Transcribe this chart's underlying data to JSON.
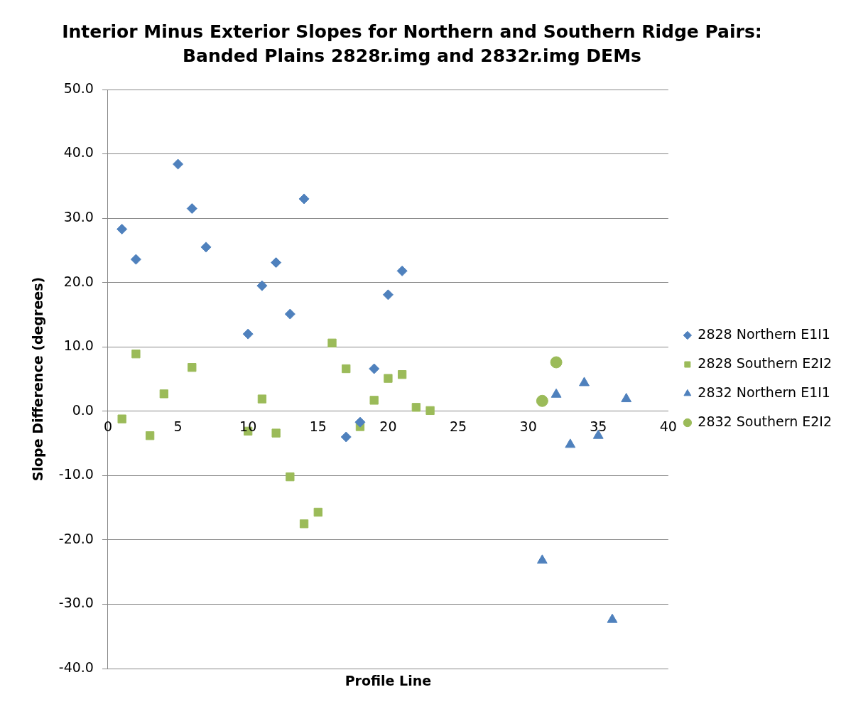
{
  "chart_data": {
    "type": "scatter",
    "title": "Interior Minus Exterior Slopes for Northern and Southern Ridge Pairs: Banded Plains 2828r.img and 2832r.img DEMs",
    "xlabel": "Profile Line",
    "ylabel": "Slope Difference (degrees)",
    "xlim": [
      0,
      40
    ],
    "xticks": [
      0,
      5,
      10,
      15,
      20,
      25,
      30,
      35,
      40
    ],
    "ylim": [
      -40,
      50
    ],
    "yticks": [
      {
        "value": -40,
        "label": "-40.0"
      },
      {
        "value": -30,
        "label": "-30.0"
      },
      {
        "value": -20,
        "label": "-20.0"
      },
      {
        "value": -10,
        "label": "-10.0"
      },
      {
        "value": 0,
        "label": "0.0"
      },
      {
        "value": 10,
        "label": "10.0"
      },
      {
        "value": 20,
        "label": "20.0"
      },
      {
        "value": 30,
        "label": "30.0"
      },
      {
        "value": 40,
        "label": "40.0"
      },
      {
        "value": 50,
        "label": "50.0"
      }
    ],
    "grid": "y",
    "legend": "right",
    "series": [
      {
        "name": "2828 Northern E1I1",
        "color": "#4f81bd",
        "marker": "diamond",
        "x": [
          1,
          2,
          5,
          6,
          7,
          10,
          11,
          12,
          13,
          14,
          17,
          18,
          19,
          20,
          21
        ],
        "values": [
          28.3,
          23.6,
          38.4,
          31.5,
          25.5,
          12.0,
          19.5,
          23.1,
          15.1,
          33.0,
          -4.0,
          -1.7,
          6.6,
          18.1,
          21.8
        ]
      },
      {
        "name": "2828 Southern E2I2",
        "color": "#9bbb59",
        "marker": "square",
        "x": [
          1,
          2,
          3,
          4,
          6,
          10,
          11,
          12,
          13,
          14,
          15,
          16,
          17,
          18,
          19,
          20,
          21,
          22,
          23
        ],
        "values": [
          -1.2,
          8.9,
          -3.8,
          2.7,
          6.8,
          -3.1,
          1.9,
          -3.4,
          -10.2,
          -17.5,
          -15.7,
          10.6,
          6.6,
          -2.4,
          1.7,
          5.1,
          5.7,
          0.6,
          0.1
        ]
      },
      {
        "name": "2832 Northern E1I1",
        "color": "#4f81bd",
        "marker": "triangle",
        "x": [
          31,
          32,
          33,
          34,
          35,
          36,
          37
        ],
        "values": [
          -23.2,
          2.6,
          -5.2,
          4.4,
          -3.8,
          -32.4,
          1.9
        ]
      },
      {
        "name": "2832 Southern E2I2",
        "color": "#9bbb59",
        "marker": "circle",
        "x": [
          31,
          32
        ],
        "values": [
          1.6,
          7.6
        ]
      }
    ]
  }
}
